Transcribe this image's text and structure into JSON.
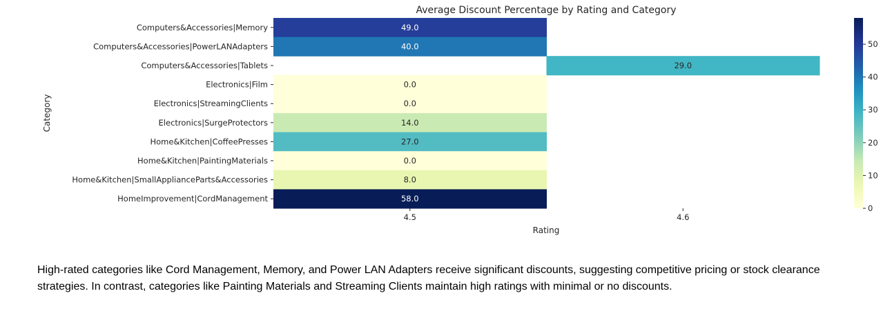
{
  "chart_data": {
    "type": "heatmap",
    "title": "Average Discount Percentage by Rating and Category",
    "xlabel": "Rating",
    "ylabel": "Category",
    "x_categories": [
      "4.5",
      "4.6"
    ],
    "y_categories": [
      "Computers&Accessories|Memory",
      "Computers&Accessories|PowerLANAdapters",
      "Computers&Accessories|Tablets",
      "Electronics|Film",
      "Electronics|StreamingClients",
      "Electronics|SurgeProtectors",
      "Home&Kitchen|CoffeePresses",
      "Home&Kitchen|PaintingMaterials",
      "Home&Kitchen|SmallApplianceParts&Accessories",
      "HomeImprovement|CordManagement"
    ],
    "values": [
      [
        49.0,
        null
      ],
      [
        40.0,
        null
      ],
      [
        null,
        29.0
      ],
      [
        0.0,
        null
      ],
      [
        0.0,
        null
      ],
      [
        14.0,
        null
      ],
      [
        27.0,
        null
      ],
      [
        0.0,
        null
      ],
      [
        8.0,
        null
      ],
      [
        58.0,
        null
      ]
    ],
    "value_labels": [
      [
        "49.0",
        ""
      ],
      [
        "40.0",
        ""
      ],
      [
        "",
        "29.0"
      ],
      [
        "0.0",
        ""
      ],
      [
        "0.0",
        ""
      ],
      [
        "14.0",
        ""
      ],
      [
        "27.0",
        ""
      ],
      [
        "0.0",
        ""
      ],
      [
        "8.0",
        ""
      ],
      [
        "58.0",
        ""
      ]
    ],
    "colormap": "YlGnBu",
    "vmin": 0,
    "vmax": 58,
    "colorbar_ticks": [
      "0",
      "10",
      "20",
      "30",
      "40",
      "50"
    ]
  },
  "caption": "High-rated categories like Cord Management, Memory, and Power LAN Adapters receive significant discounts, suggesting competitive pricing or stock clearance strategies. In contrast, categories like Painting Materials and Streaming Clients maintain high ratings with minimal or no discounts."
}
